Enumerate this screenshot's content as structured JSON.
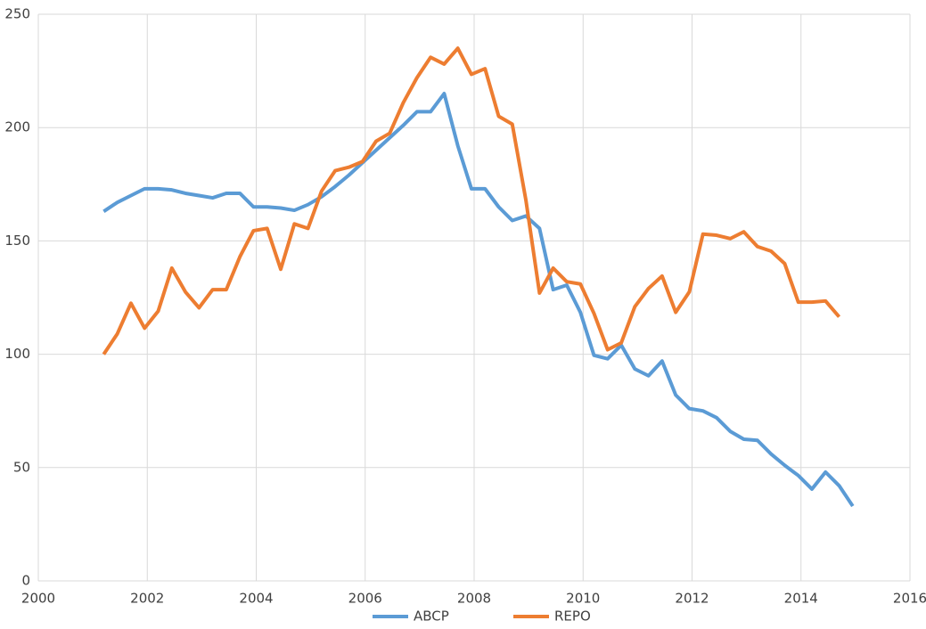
{
  "chart_data": {
    "type": "line",
    "x": [
      2001.2,
      2001.45,
      2001.7,
      2001.95,
      2002.2,
      2002.45,
      2002.7,
      2002.95,
      2003.2,
      2003.45,
      2003.7,
      2003.95,
      2004.2,
      2004.45,
      2004.7,
      2004.95,
      2005.2,
      2005.45,
      2005.7,
      2005.95,
      2006.2,
      2006.45,
      2006.7,
      2006.95,
      2007.2,
      2007.45,
      2007.7,
      2007.95,
      2008.2,
      2008.45,
      2008.7,
      2008.95,
      2009.2,
      2009.45,
      2009.7,
      2009.95,
      2010.2,
      2010.45,
      2010.7,
      2010.95,
      2011.2,
      2011.45,
      2011.7,
      2011.95,
      2012.2,
      2012.45,
      2012.7,
      2012.95,
      2013.2,
      2013.45,
      2013.7,
      2013.95,
      2014.2,
      2014.45,
      2014.7,
      2014.95
    ],
    "series": [
      {
        "name": "ABCP",
        "color": "#5b9bd5",
        "values": [
          163,
          167,
          170,
          173,
          173,
          172.5,
          171,
          170,
          169,
          171,
          171,
          165,
          165,
          164.5,
          163.5,
          166,
          169.5,
          174,
          179,
          184.5,
          190,
          195.5,
          201,
          207,
          207,
          215,
          192,
          173,
          173,
          165,
          159,
          161,
          155.5,
          128.5,
          130.5,
          118.5,
          99.5,
          98,
          104,
          93.5,
          90.5,
          97,
          82,
          76,
          75,
          72,
          66,
          62.5,
          62,
          56,
          51,
          46.5,
          40.5,
          48,
          42,
          33
        ]
      },
      {
        "name": "REPO",
        "color": "#ed7d31",
        "values": [
          100,
          109,
          122.5,
          111.5,
          119,
          138,
          127.5,
          120.5,
          128.5,
          128.5,
          143,
          154.5,
          155.5,
          137.5,
          157.5,
          155.5,
          172,
          181,
          182.5,
          185,
          194,
          197.5,
          211,
          222,
          231,
          228,
          235,
          223.5,
          226,
          205,
          201.5,
          168,
          127,
          138,
          132,
          131,
          118,
          102,
          105,
          121,
          129,
          134.5,
          118.5,
          127.5,
          153,
          152.5,
          151,
          154,
          147.5,
          145.5,
          140,
          123,
          123,
          123.5,
          116.5,
          null
        ]
      }
    ],
    "xlim": [
      2000,
      2016
    ],
    "xticks": [
      2000,
      2002,
      2004,
      2006,
      2008,
      2010,
      2012,
      2014,
      2016
    ],
    "ylim": [
      0,
      250
    ],
    "yticks": [
      0,
      50,
      100,
      150,
      200,
      250
    ],
    "grid": true,
    "legend": "bottom"
  }
}
